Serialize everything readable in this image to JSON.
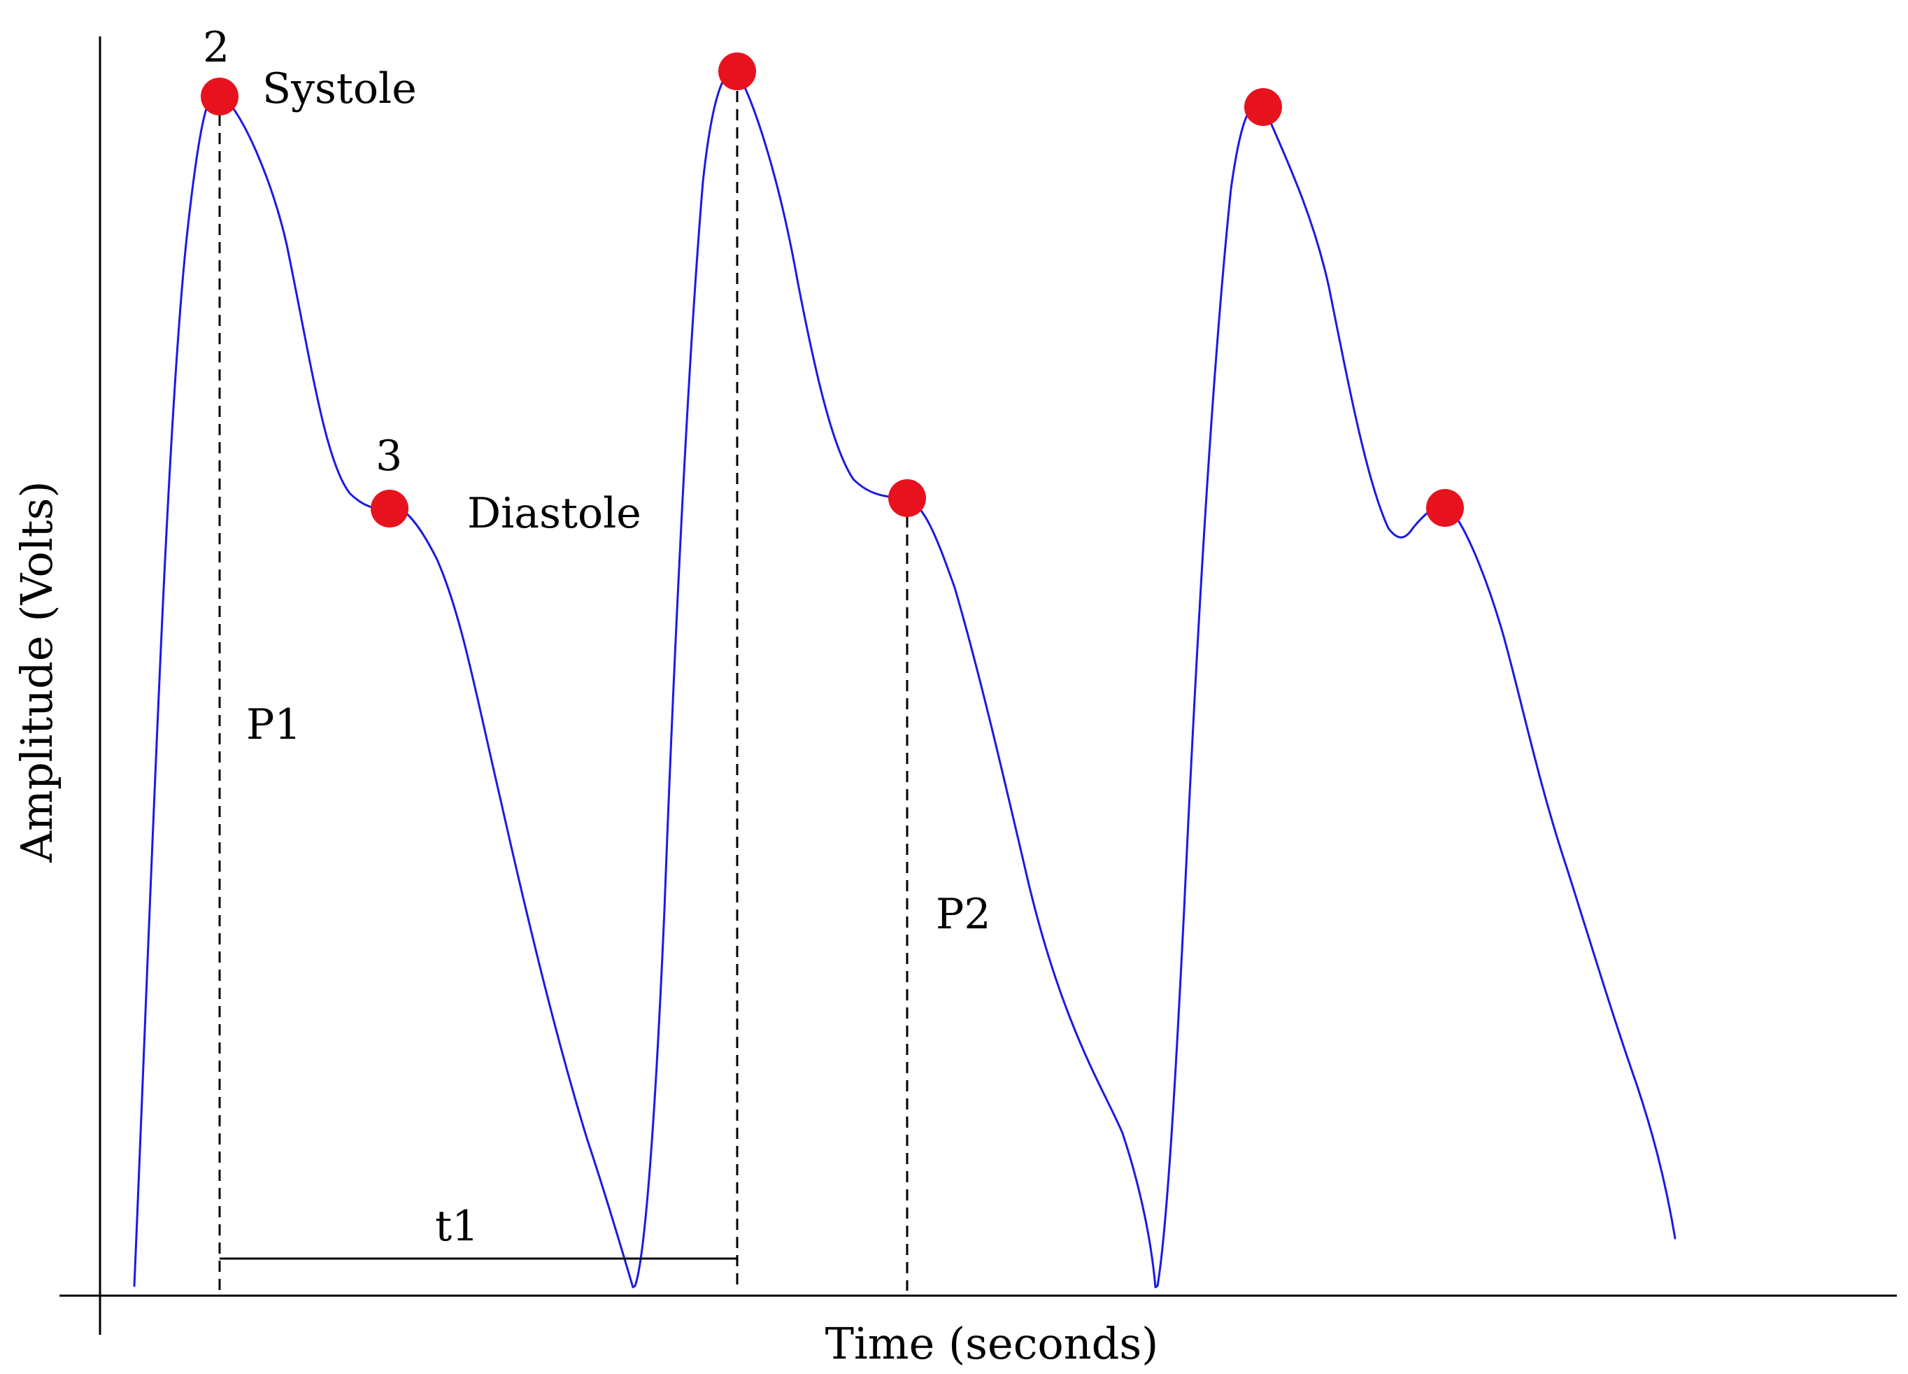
{
  "diagram": {
    "x_axis_label": "Time (seconds)",
    "y_axis_label": "Amplitude (Volts)",
    "annotations": {
      "systole_number": "2",
      "systole_label": "Systole",
      "diastole_number": "3",
      "diastole_label": "Diastole",
      "p1_label": "P1",
      "p2_label": "P2",
      "t1_label": "t1"
    },
    "colors": {
      "waveform": "#1a1ae6",
      "markers": "#e8121e",
      "axes": "#000000"
    },
    "pulse_count": 3,
    "marker_icon": "red-dot-marker"
  }
}
